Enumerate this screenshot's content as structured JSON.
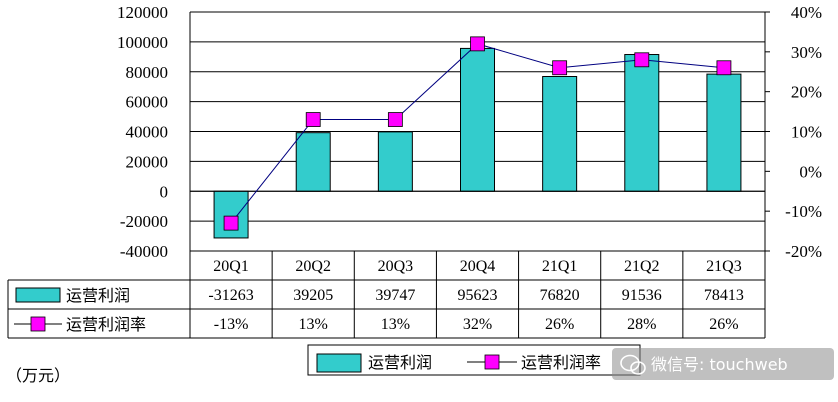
{
  "chart_data": {
    "type": "bar",
    "categories": [
      "20Q1",
      "20Q2",
      "20Q3",
      "20Q4",
      "21Q1",
      "21Q2",
      "21Q3"
    ],
    "series": [
      {
        "name": "运营利润",
        "kind": "bar",
        "axis": "left",
        "values": [
          -31263,
          39205,
          39747,
          95623,
          76820,
          91536,
          78413
        ],
        "labels": [
          "-31263",
          "39205",
          "39747",
          "95623",
          "76820",
          "91536",
          "78413"
        ],
        "color": "#33CCCC"
      },
      {
        "name": "运营利润率",
        "kind": "line",
        "axis": "right",
        "values": [
          -13,
          13,
          13,
          32,
          26,
          28,
          26
        ],
        "labels": [
          "-13%",
          "13%",
          "13%",
          "32%",
          "26%",
          "28%",
          "26%"
        ],
        "color": "#FF00FF",
        "line_color": "#000080"
      }
    ],
    "y_left": {
      "ylim": [
        -40000,
        120000
      ],
      "ticks": [
        "-40000",
        "-20000",
        "0",
        "20000",
        "40000",
        "60000",
        "80000",
        "100000",
        "120000"
      ]
    },
    "y_right": {
      "ylim": [
        -20,
        40
      ],
      "ticks": [
        "-20%",
        "-10%",
        "0%",
        "10%",
        "20%",
        "30%",
        "40%"
      ]
    },
    "unit_note": "（万元）",
    "legend": {
      "placement": "bottom",
      "items": [
        "运营利润",
        "运营利润率"
      ]
    },
    "grid": true,
    "data_table": true
  },
  "watermark": "微信号: touchweb"
}
